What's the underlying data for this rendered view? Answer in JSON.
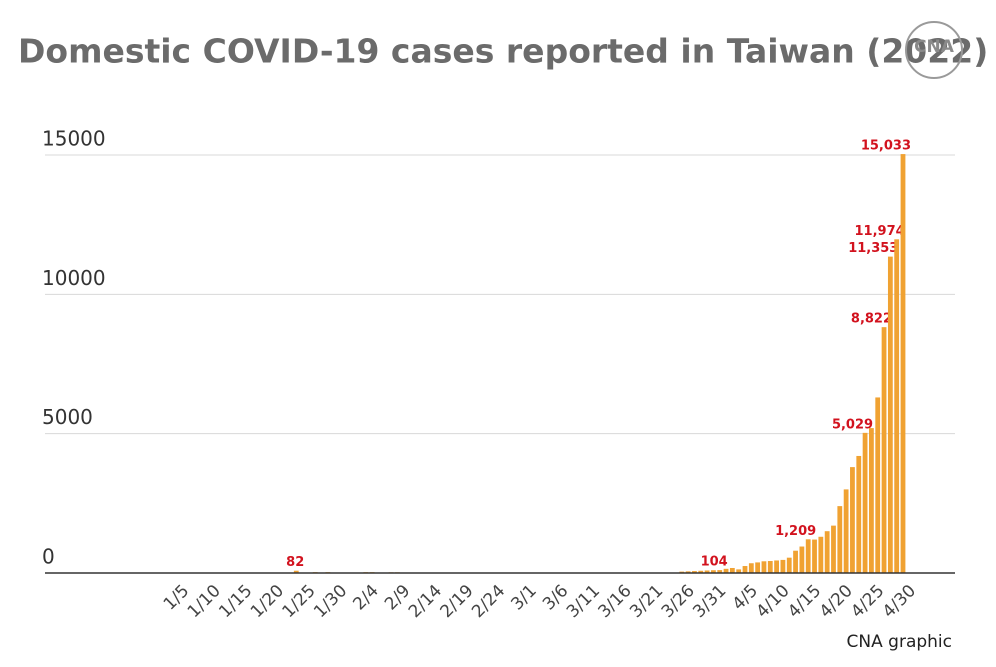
{
  "chart_data": {
    "type": "bar",
    "title": "Domestic COVID-19 cases reported in Taiwan (2022)",
    "logo": "CNA",
    "source": "CNA graphic",
    "color": "#f0a232",
    "label_color": "#d2121e",
    "ylim": [
      0,
      15000
    ],
    "yticks": [
      0,
      5000,
      10000,
      15000
    ],
    "grid": true,
    "categories": [
      null,
      null,
      null,
      null,
      "1/5",
      null,
      null,
      null,
      null,
      "1/10",
      null,
      null,
      null,
      null,
      "1/15",
      null,
      null,
      null,
      null,
      "1/20",
      null,
      null,
      null,
      null,
      "1/25",
      null,
      null,
      null,
      null,
      "1/30",
      null,
      null,
      null,
      null,
      "2/4",
      null,
      null,
      null,
      null,
      "2/9",
      null,
      null,
      null,
      null,
      "2/14",
      null,
      null,
      null,
      null,
      "2/19",
      null,
      null,
      null,
      null,
      "2/24",
      null,
      null,
      null,
      null,
      "3/1",
      null,
      null,
      null,
      null,
      "3/6",
      null,
      null,
      null,
      null,
      "3/11",
      null,
      null,
      null,
      null,
      "3/16",
      null,
      null,
      null,
      null,
      "3/21",
      null,
      null,
      null,
      null,
      "3/26",
      null,
      null,
      null,
      null,
      "3/31",
      null,
      null,
      null,
      null,
      "4/5",
      null,
      null,
      null,
      null,
      "4/10",
      null,
      null,
      null,
      null,
      "4/15",
      null,
      null,
      null,
      null,
      "4/20",
      null,
      null,
      null,
      null,
      "4/25",
      null,
      null,
      null,
      null,
      "4/30"
    ],
    "values": [
      0,
      0,
      0,
      0,
      0,
      0,
      0,
      0,
      0,
      0,
      0,
      0,
      0,
      0,
      0,
      0,
      0,
      0,
      0,
      0,
      0,
      0,
      0,
      82,
      0,
      0,
      30,
      0,
      30,
      0,
      0,
      0,
      0,
      0,
      30,
      30,
      0,
      0,
      25,
      25,
      0,
      0,
      0,
      0,
      0,
      0,
      0,
      0,
      0,
      0,
      0,
      0,
      0,
      0,
      0,
      0,
      0,
      0,
      0,
      0,
      0,
      0,
      0,
      0,
      0,
      0,
      0,
      0,
      0,
      0,
      0,
      0,
      0,
      0,
      0,
      0,
      0,
      0,
      0,
      0,
      0,
      0,
      0,
      0,
      50,
      60,
      70,
      80,
      90,
      100,
      104,
      150,
      180,
      130,
      250,
      350,
      380,
      420,
      430,
      450,
      470,
      550,
      800,
      950,
      1209,
      1200,
      1300,
      1500,
      1700,
      2400,
      3000,
      3800,
      4200,
      5029,
      5200,
      6300,
      8822,
      11353,
      11974,
      15033
    ],
    "value_labels": [
      null,
      null,
      null,
      null,
      null,
      null,
      null,
      null,
      null,
      null,
      null,
      null,
      null,
      null,
      null,
      null,
      null,
      null,
      null,
      null,
      null,
      null,
      null,
      "82",
      null,
      null,
      null,
      null,
      null,
      null,
      null,
      null,
      null,
      null,
      null,
      null,
      null,
      null,
      null,
      null,
      null,
      null,
      null,
      null,
      null,
      null,
      null,
      null,
      null,
      null,
      null,
      null,
      null,
      null,
      null,
      null,
      null,
      null,
      null,
      null,
      null,
      null,
      null,
      null,
      null,
      null,
      null,
      null,
      null,
      null,
      null,
      null,
      null,
      null,
      null,
      null,
      null,
      null,
      null,
      null,
      null,
      null,
      null,
      null,
      null,
      null,
      null,
      null,
      null,
      null,
      "104",
      null,
      null,
      null,
      null,
      null,
      null,
      null,
      null,
      null,
      null,
      null,
      null,
      null,
      "1,209",
      null,
      null,
      null,
      null,
      null,
      null,
      null,
      null,
      "5,029",
      null,
      null,
      "8,822",
      "11,353",
      "11,974",
      "15,033"
    ]
  }
}
